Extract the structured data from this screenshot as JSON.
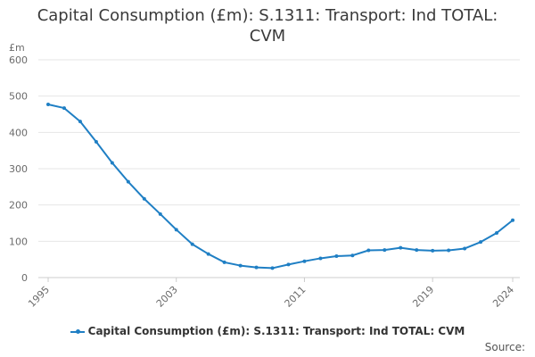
{
  "title_line1": "Capital Consumption (£m): S.1311: Transport: Ind TOTAL:",
  "title_line2": "CVM",
  "source_label": "Source:",
  "colors": {
    "series": "#1f7fc4",
    "grid": "#e6e6e6",
    "axis": "#cccccc",
    "text": "#6b6b6b"
  },
  "chart_data": {
    "type": "line",
    "ylabel": "£m",
    "ylim": [
      0,
      600
    ],
    "yticks": [
      0,
      100,
      200,
      300,
      400,
      500,
      600
    ],
    "xlim": [
      1995,
      2024
    ],
    "xticks": [
      1995,
      2003,
      2011,
      2019,
      2024
    ],
    "grid": true,
    "legend_position": "bottom",
    "series": [
      {
        "name": "Capital Consumption (£m): S.1311: Transport: Ind TOTAL: CVM",
        "x": [
          1995,
          1996,
          1997,
          1998,
          1999,
          2000,
          2001,
          2002,
          2003,
          2004,
          2005,
          2006,
          2007,
          2008,
          2009,
          2010,
          2011,
          2012,
          2013,
          2014,
          2015,
          2016,
          2017,
          2018,
          2019,
          2020,
          2021,
          2022,
          2023,
          2024
        ],
        "values": [
          477,
          467,
          430,
          374,
          316,
          264,
          217,
          175,
          132,
          92,
          65,
          42,
          33,
          28,
          26,
          36,
          45,
          53,
          59,
          61,
          75,
          76,
          82,
          76,
          74,
          75,
          80,
          98,
          123,
          158
        ]
      }
    ]
  }
}
